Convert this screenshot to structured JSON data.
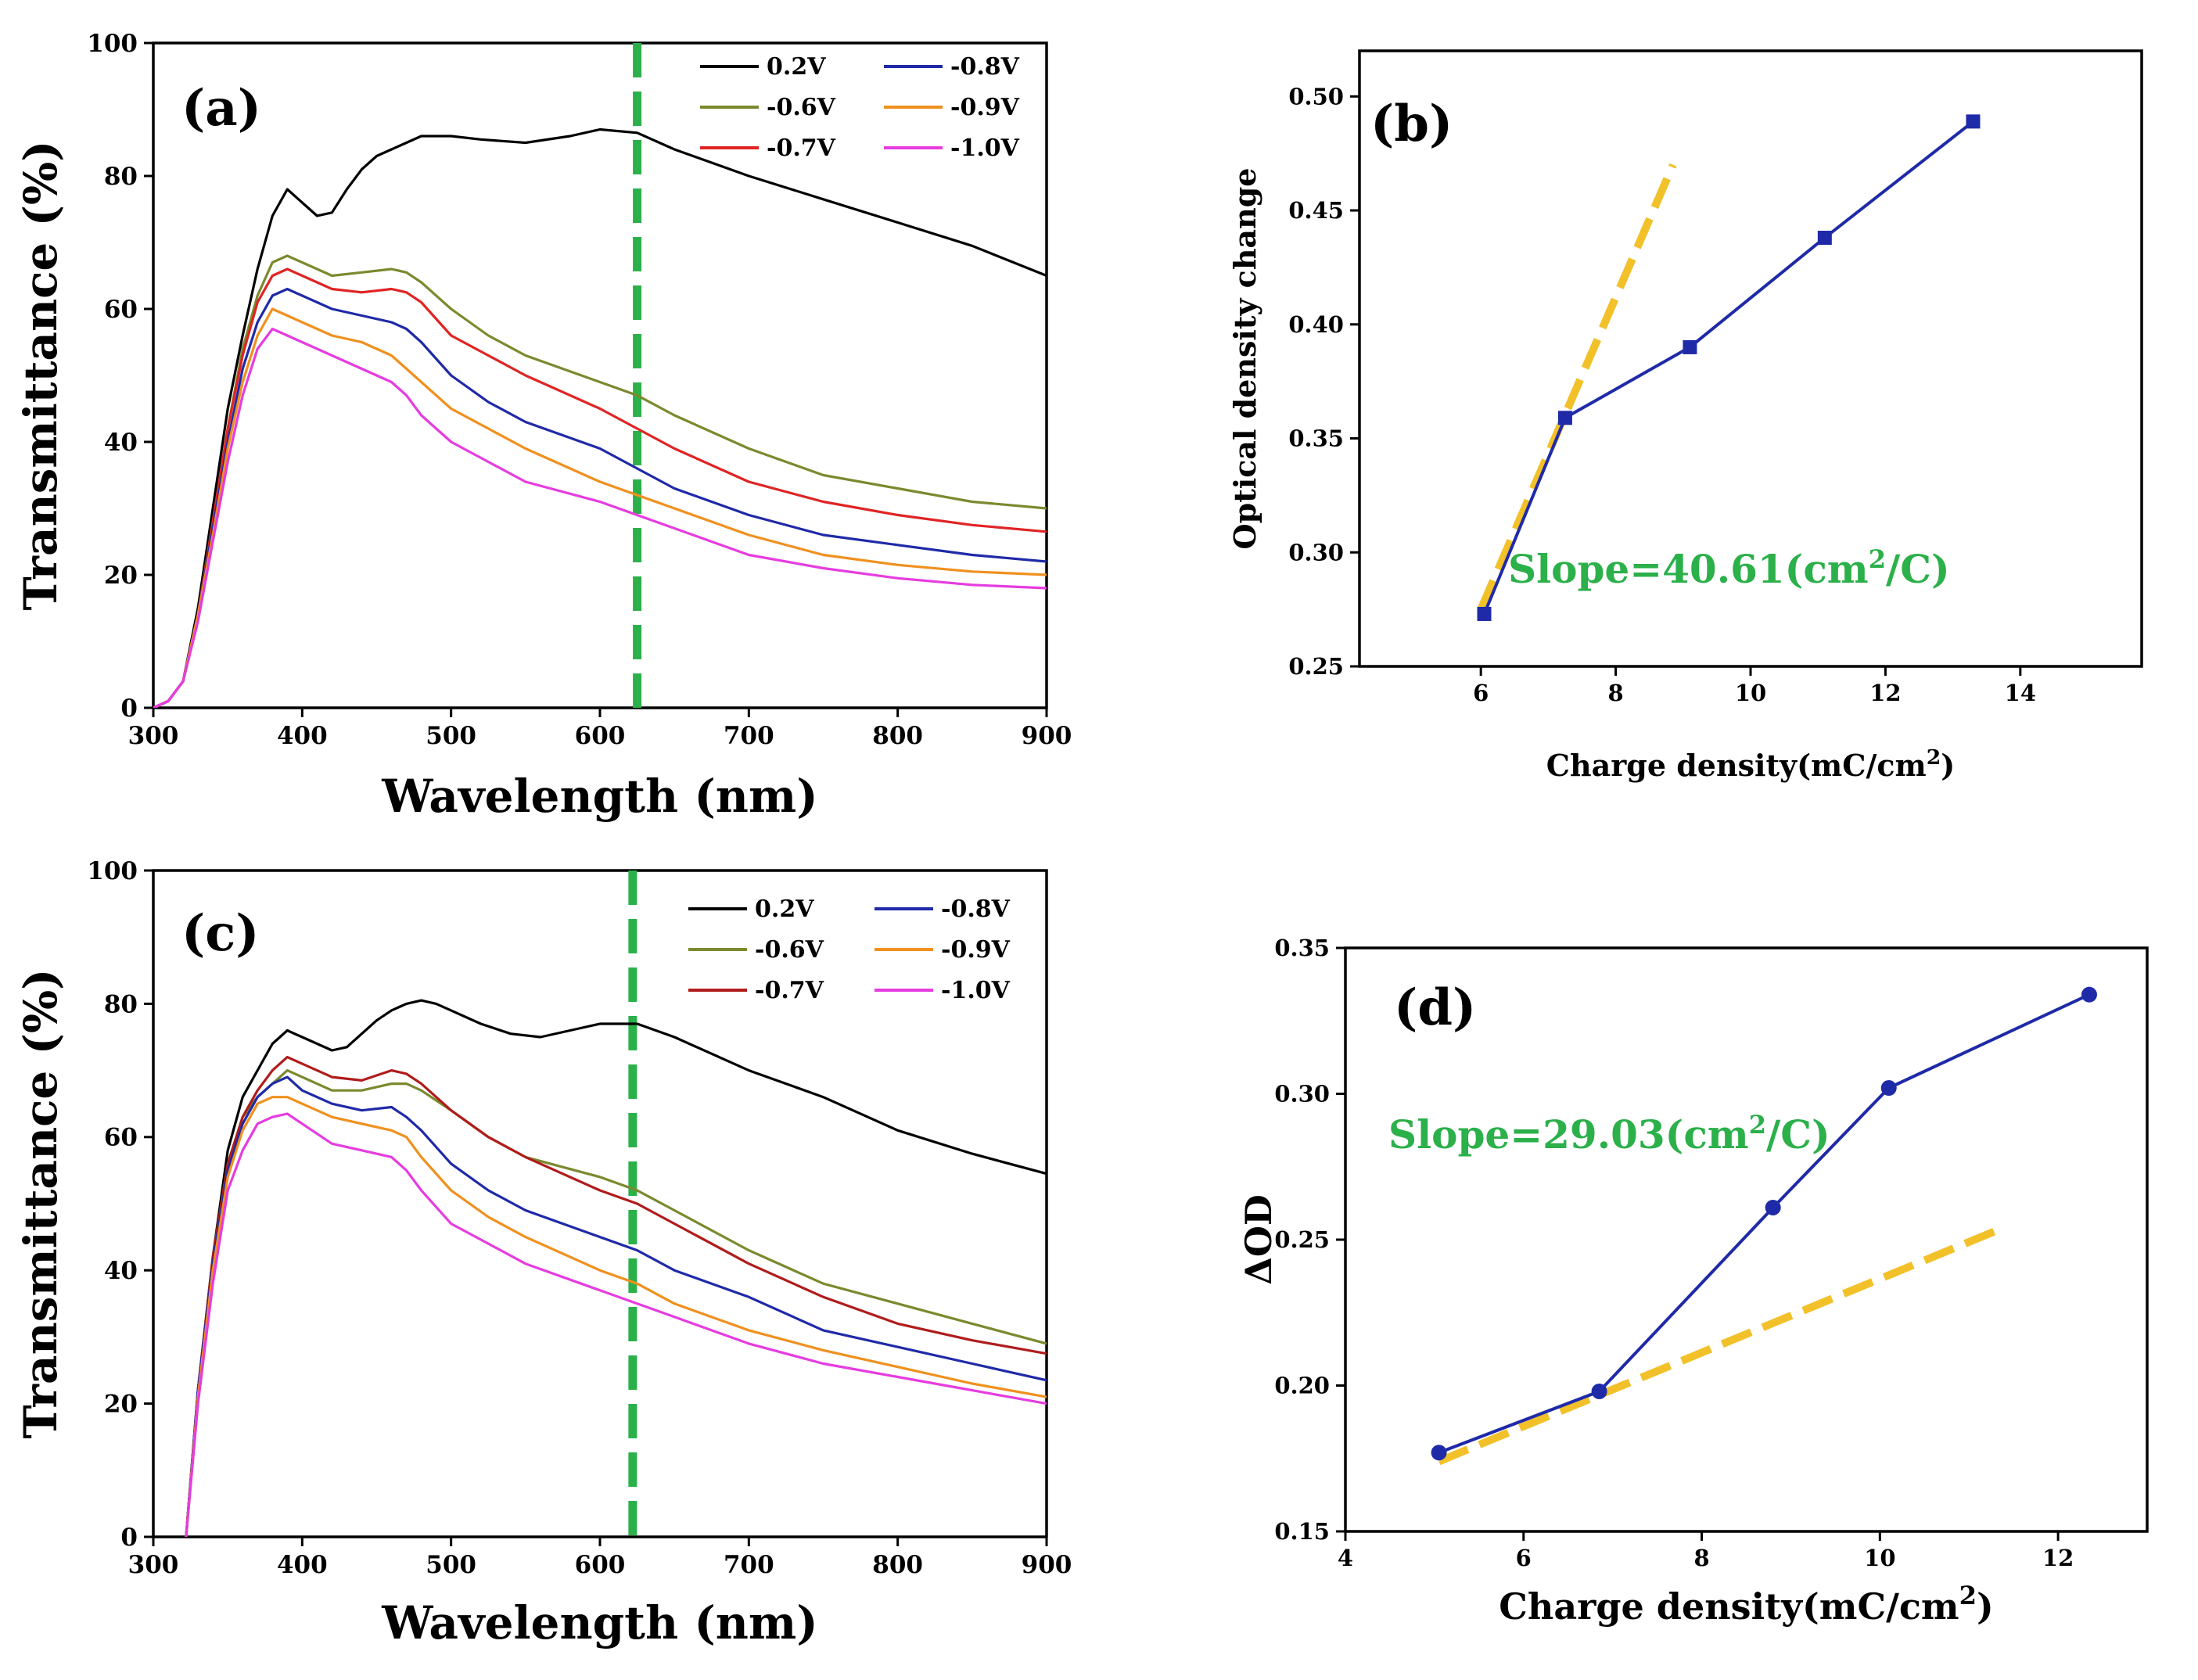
{
  "chart_data": [
    {
      "panel": "(a)",
      "type": "line",
      "xlabel": "Wavelength (nm)",
      "ylabel": "Transmittance (%)",
      "xlim": [
        300,
        900
      ],
      "ylim": [
        0,
        100
      ],
      "xticks": [
        "300",
        "400",
        "500",
        "600",
        "700",
        "800",
        "900"
      ],
      "yticks": [
        "0",
        "20",
        "40",
        "60",
        "80",
        "100"
      ],
      "marker_line": {
        "x": 625,
        "color": "#2bb04a"
      },
      "legend": [
        "0.2V",
        "-0.8V",
        "-0.6V",
        "-0.9V",
        "-0.7V",
        "-1.0V"
      ],
      "series": [
        {
          "name": "0.2V",
          "color": "#000000",
          "x": [
            300,
            310,
            320,
            330,
            340,
            350,
            360,
            370,
            380,
            390,
            400,
            410,
            420,
            430,
            440,
            450,
            460,
            470,
            480,
            490,
            500,
            520,
            550,
            580,
            600,
            625,
            650,
            700,
            750,
            800,
            850,
            900
          ],
          "y": [
            0,
            1,
            4,
            15,
            30,
            45,
            56,
            66,
            74,
            78,
            76,
            74,
            74.5,
            78,
            81,
            83,
            84,
            85,
            86,
            86,
            86,
            85.5,
            85,
            86,
            87,
            86.5,
            84,
            80,
            76.5,
            73,
            69.5,
            65
          ]
        },
        {
          "name": "-0.6V",
          "color": "#7a8a2e",
          "x": [
            300,
            310,
            320,
            330,
            340,
            350,
            360,
            370,
            380,
            390,
            400,
            420,
            440,
            460,
            470,
            480,
            500,
            525,
            550,
            600,
            625,
            650,
            700,
            750,
            800,
            850,
            900
          ],
          "y": [
            0,
            1,
            4,
            14,
            28,
            42,
            54,
            62,
            67,
            68,
            67,
            65,
            65.5,
            66,
            65.5,
            64,
            60,
            56,
            53,
            49,
            47,
            44,
            39,
            35,
            33,
            31,
            30
          ]
        },
        {
          "name": "-0.7V",
          "color": "#e02424",
          "x": [
            300,
            310,
            320,
            330,
            340,
            350,
            360,
            370,
            380,
            390,
            400,
            420,
            440,
            460,
            470,
            480,
            500,
            525,
            550,
            600,
            625,
            650,
            700,
            750,
            800,
            850,
            900
          ],
          "y": [
            0,
            1,
            4,
            14,
            28,
            42,
            53,
            61,
            65,
            66,
            65,
            63,
            62.5,
            63,
            62.5,
            61,
            56,
            53,
            50,
            45,
            42,
            39,
            34,
            31,
            29,
            27.5,
            26.5
          ]
        },
        {
          "name": "-0.8V",
          "color": "#1f2aa8",
          "x": [
            300,
            310,
            320,
            330,
            340,
            350,
            360,
            370,
            380,
            390,
            400,
            420,
            440,
            460,
            470,
            480,
            500,
            525,
            550,
            600,
            625,
            650,
            700,
            750,
            800,
            850,
            900
          ],
          "y": [
            0,
            1,
            4,
            14,
            27,
            40,
            51,
            58,
            62,
            63,
            62,
            60,
            59,
            58,
            57,
            55,
            50,
            46,
            43,
            39,
            36,
            33,
            29,
            26,
            24.5,
            23,
            22
          ]
        },
        {
          "name": "-0.9V",
          "color": "#f0901e",
          "x": [
            300,
            310,
            320,
            330,
            340,
            350,
            360,
            370,
            380,
            390,
            400,
            420,
            440,
            460,
            470,
            480,
            500,
            525,
            550,
            600,
            625,
            650,
            700,
            750,
            800,
            850,
            900
          ],
          "y": [
            0,
            1,
            4,
            14,
            26,
            39,
            49,
            56,
            60,
            59,
            58,
            56,
            55,
            53,
            51,
            49,
            45,
            42,
            39,
            34,
            32,
            30,
            26,
            23,
            21.5,
            20.5,
            20
          ]
        },
        {
          "name": "-1.0V",
          "color": "#e63ce0",
          "x": [
            300,
            310,
            320,
            330,
            340,
            350,
            360,
            370,
            380,
            390,
            400,
            420,
            440,
            460,
            470,
            480,
            500,
            525,
            550,
            600,
            625,
            650,
            700,
            750,
            800,
            850,
            900
          ],
          "y": [
            0,
            1,
            4,
            13,
            25,
            37,
            47,
            54,
            57,
            56,
            55,
            53,
            51,
            49,
            47,
            44,
            40,
            37,
            34,
            31,
            29,
            27,
            23,
            21,
            19.5,
            18.5,
            18
          ]
        }
      ]
    },
    {
      "panel": "(b)",
      "type": "line",
      "xlabel": "Charge density(mC/cm",
      "xlabel_sup": "2",
      "xlabel_end": ")",
      "ylabel": "Optical density change",
      "xlim": [
        4.2,
        15.8
      ],
      "ylim": [
        0.25,
        0.52
      ],
      "xticks": [
        "6",
        "8",
        "10",
        "12",
        "14"
      ],
      "ytick_values": [
        0.25,
        0.3,
        0.35,
        0.4,
        0.45,
        0.5
      ],
      "yticks": [
        "0.25",
        "0.30",
        "0.35",
        "0.40",
        "0.45",
        "0.50"
      ],
      "marker": "square",
      "series": [
        {
          "name": "data",
          "color": "#1f2aa8",
          "x": [
            6.05,
            7.25,
            9.1,
            11.1,
            13.3
          ],
          "y": [
            0.273,
            0.359,
            0.39,
            0.438,
            0.489
          ]
        }
      ],
      "fit_line": {
        "color": "#f2c12a",
        "x": [
          6.0,
          8.85
        ],
        "y": [
          0.275,
          0.47
        ]
      },
      "slope_label": {
        "text": "Slope=40.61(cm",
        "sup": "2",
        "end": "/C)",
        "color": "#2bb04a"
      }
    },
    {
      "panel": "(c)",
      "type": "line",
      "xlabel": "Wavelength (nm)",
      "ylabel": "Transmittance (%)",
      "xlim": [
        300,
        900
      ],
      "ylim": [
        0,
        100
      ],
      "xticks": [
        "300",
        "400",
        "500",
        "600",
        "700",
        "800",
        "900"
      ],
      "yticks": [
        "0",
        "20",
        "40",
        "60",
        "80",
        "100"
      ],
      "marker_line": {
        "x": 622,
        "color": "#2bb04a"
      },
      "legend": [
        "0.2V",
        "-0.8V",
        "-0.6V",
        "-0.9V",
        "-0.7V",
        "-1.0V"
      ],
      "series": [
        {
          "name": "0.2V",
          "color": "#000000",
          "x": [
            322,
            330,
            340,
            350,
            360,
            370,
            380,
            390,
            400,
            410,
            420,
            430,
            440,
            450,
            460,
            470,
            480,
            490,
            500,
            520,
            540,
            560,
            580,
            600,
            625,
            650,
            700,
            750,
            800,
            850,
            900
          ],
          "y": [
            0,
            22,
            42,
            58,
            66,
            70,
            74,
            76,
            75,
            74,
            73,
            73.5,
            75.5,
            77.5,
            79,
            80,
            80.5,
            80,
            79,
            77,
            75.5,
            75,
            76,
            77,
            77,
            75,
            70,
            66,
            61,
            57.5,
            54.5
          ]
        },
        {
          "name": "-0.6V",
          "color": "#7a8a2e",
          "x": [
            322,
            330,
            340,
            350,
            360,
            370,
            380,
            390,
            400,
            420,
            440,
            460,
            470,
            480,
            500,
            525,
            550,
            600,
            625,
            650,
            700,
            750,
            800,
            850,
            900
          ],
          "y": [
            0,
            22,
            42,
            56,
            63,
            66,
            68,
            70,
            69,
            67,
            67,
            68,
            68,
            67,
            64,
            60,
            57,
            54,
            52,
            49,
            43,
            38,
            35,
            32,
            29
          ]
        },
        {
          "name": "-0.7V",
          "color": "#b01c1c",
          "x": [
            322,
            330,
            340,
            350,
            360,
            370,
            380,
            390,
            400,
            420,
            440,
            460,
            470,
            480,
            500,
            525,
            550,
            600,
            625,
            650,
            700,
            750,
            800,
            850,
            900
          ],
          "y": [
            0,
            22,
            42,
            56,
            63,
            67,
            70,
            72,
            71,
            69,
            68.5,
            70,
            69.5,
            68,
            64,
            60,
            57,
            52,
            50,
            47,
            41,
            36,
            32,
            29.5,
            27.5
          ]
        },
        {
          "name": "-0.8V",
          "color": "#1f2aa8",
          "x": [
            322,
            330,
            340,
            350,
            360,
            370,
            380,
            390,
            400,
            420,
            440,
            460,
            470,
            480,
            500,
            525,
            550,
            600,
            625,
            650,
            700,
            750,
            800,
            850,
            900
          ],
          "y": [
            0,
            22,
            41,
            55,
            62,
            66,
            68,
            69,
            67,
            65,
            64,
            64.5,
            63,
            61,
            56,
            52,
            49,
            45,
            43,
            40,
            36,
            31,
            28.5,
            26,
            23.5
          ]
        },
        {
          "name": "-0.9V",
          "color": "#f0901e",
          "x": [
            322,
            330,
            340,
            350,
            360,
            370,
            380,
            390,
            400,
            420,
            440,
            460,
            470,
            480,
            500,
            525,
            550,
            600,
            625,
            650,
            700,
            750,
            800,
            850,
            900
          ],
          "y": [
            0,
            21,
            40,
            54,
            61,
            65,
            66,
            66,
            65,
            63,
            62,
            61,
            60,
            57,
            52,
            48,
            45,
            40,
            38,
            35,
            31,
            28,
            25.5,
            23,
            21
          ]
        },
        {
          "name": "-1.0V",
          "color": "#e63ce0",
          "x": [
            322,
            330,
            340,
            350,
            360,
            370,
            380,
            390,
            400,
            420,
            440,
            460,
            470,
            480,
            500,
            525,
            550,
            600,
            625,
            650,
            700,
            750,
            800,
            850,
            900
          ],
          "y": [
            0,
            20,
            38,
            52,
            58,
            62,
            63,
            63.5,
            62,
            59,
            58,
            57,
            55,
            52,
            47,
            44,
            41,
            37,
            35,
            33,
            29,
            26,
            24,
            22,
            20
          ]
        }
      ]
    },
    {
      "panel": "(d)",
      "type": "line",
      "xlabel": "Charge density(mC/cm",
      "xlabel_sup": "2",
      "xlabel_end": ")",
      "ylabel": "ΔOD",
      "xlim": [
        4,
        13
      ],
      "ylim": [
        0.15,
        0.35
      ],
      "xticks": [
        "4",
        "6",
        "8",
        "10",
        "12"
      ],
      "ytick_values": [
        0.15,
        0.2,
        0.25,
        0.3,
        0.35
      ],
      "yticks": [
        "0.15",
        "0.20",
        "0.25",
        "0.30",
        "0.35"
      ],
      "marker": "circle",
      "series": [
        {
          "name": "data",
          "color": "#1f2aa8",
          "x": [
            5.05,
            6.85,
            8.8,
            10.1,
            12.35
          ],
          "y": [
            0.177,
            0.198,
            0.261,
            0.302,
            0.334
          ]
        }
      ],
      "fit_line": {
        "color": "#f2c12a",
        "x": [
          5.05,
          11.3
        ],
        "y": [
          0.174,
          0.253
        ]
      },
      "slope_label": {
        "text": "Slope=29.03(cm",
        "sup": "2",
        "end": "/C)",
        "color": "#2bb04a"
      }
    }
  ]
}
